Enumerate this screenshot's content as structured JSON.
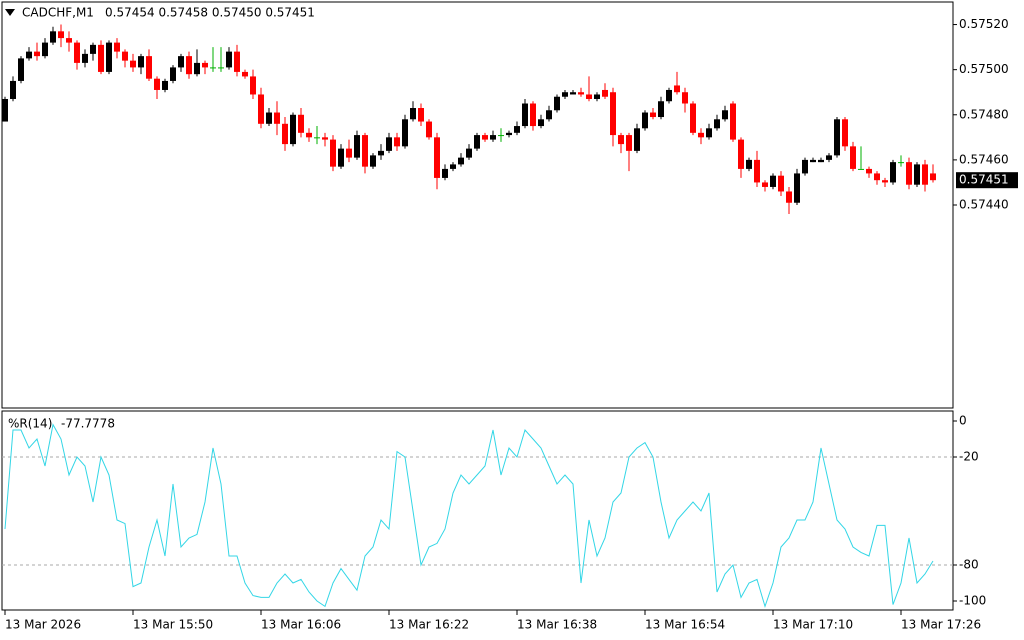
{
  "chart_data": [
    {
      "type": "candlestick",
      "title": "CADCHF,M1",
      "info": "0.57454 0.57458 0.57450 0.57451",
      "up_color": "#000000",
      "down_color": "#ff0000",
      "doji_color": "#00b000",
      "current_price": 0.57451,
      "ylim": [
        0.5735,
        0.5753
      ],
      "yticks": [
        {
          "value": 0.5744,
          "label": "0.57440"
        },
        {
          "value": 0.5746,
          "label": "0.57460"
        },
        {
          "value": 0.5748,
          "label": "0.57480"
        },
        {
          "value": 0.575,
          "label": "0.57500"
        },
        {
          "value": 0.5752,
          "label": "0.57520"
        }
      ],
      "categories": [
        "13 Mar 2026",
        null,
        null,
        null,
        null,
        null,
        null,
        null,
        null,
        null,
        null,
        null,
        null,
        null,
        null,
        null,
        "13 Mar 15:50",
        null,
        null,
        null,
        null,
        null,
        null,
        null,
        null,
        null,
        null,
        null,
        null,
        null,
        null,
        null,
        "13 Mar 16:06",
        null,
        null,
        null,
        null,
        null,
        null,
        null,
        null,
        null,
        null,
        null,
        null,
        null,
        null,
        null,
        "13 Mar 16:22",
        null,
        null,
        null,
        null,
        null,
        null,
        null,
        null,
        null,
        null,
        null,
        null,
        null,
        null,
        null,
        "13 Mar 16:38",
        null,
        null,
        null,
        null,
        null,
        null,
        null,
        null,
        null,
        null,
        null,
        null,
        null,
        null,
        null,
        "13 Mar 16:54",
        null,
        null,
        null,
        null,
        null,
        null,
        null,
        null,
        null,
        null,
        null,
        null,
        null,
        null,
        null,
        "13 Mar 17:10",
        null,
        null,
        null,
        null,
        null,
        null,
        null,
        null,
        null,
        null,
        null,
        null,
        null,
        null,
        null,
        "13 Mar 17:26",
        null,
        null,
        null,
        null
      ],
      "open": [
        0.57477,
        0.57487,
        0.57495,
        0.57505,
        0.57508,
        0.57506,
        0.57512,
        0.57517,
        0.57514,
        0.57512,
        0.57503,
        0.57507,
        0.57511,
        0.57499,
        0.57512,
        0.57508,
        0.57504,
        0.57501,
        0.57506,
        0.57496,
        0.57491,
        0.57495,
        0.57501,
        0.57506,
        0.57498,
        0.57503,
        0.57501,
        0.57501,
        0.57501,
        0.57508,
        0.57499,
        0.57497,
        0.57489,
        0.57476,
        0.57481,
        0.57476,
        0.57467,
        0.5748,
        0.57472,
        0.5747,
        0.5747,
        0.57469,
        0.57457,
        0.57465,
        0.57461,
        0.57471,
        0.57457,
        0.57462,
        0.57464,
        0.5747,
        0.57466,
        0.57478,
        0.57483,
        0.57477,
        0.5747,
        0.57452,
        0.57456,
        0.57458,
        0.57461,
        0.57465,
        0.57471,
        0.57469,
        0.57471,
        0.57471,
        0.57472,
        0.57475,
        0.57485,
        0.57475,
        0.57478,
        0.57482,
        0.57488,
        0.57489,
        0.5749,
        0.57489,
        0.57487,
        0.57491,
        0.5749,
        0.57471,
        0.57471,
        0.57464,
        0.57474,
        0.57481,
        0.57479,
        0.57486,
        0.57493,
        0.5749,
        0.57485,
        0.57472,
        0.5747,
        0.57474,
        0.57478,
        0.57485,
        0.57469,
        0.57456,
        0.5746,
        0.5745,
        0.57448,
        0.57453,
        0.57446,
        0.57441,
        0.57454,
        0.57459,
        0.57459,
        0.5746,
        0.57462,
        0.57478,
        0.57466,
        0.57456,
        0.57456,
        0.57454,
        0.57451,
        0.5745,
        0.57459,
        0.57459,
        0.57449,
        0.57458,
        0.57454
      ],
      "high": [
        0.57488,
        0.57497,
        0.57506,
        0.5751,
        0.57512,
        0.57514,
        0.57519,
        0.5752,
        0.57517,
        0.57513,
        0.57509,
        0.57512,
        0.57513,
        0.57513,
        0.57514,
        0.57509,
        0.57507,
        0.57507,
        0.57509,
        0.57497,
        0.57496,
        0.57502,
        0.57507,
        0.57508,
        0.57509,
        0.57504,
        0.5751,
        0.5751,
        0.5751,
        0.57511,
        0.575,
        0.575,
        0.57492,
        0.57483,
        0.57486,
        0.57479,
        0.57481,
        0.57483,
        0.57474,
        0.57475,
        0.57472,
        0.57471,
        0.57467,
        0.57469,
        0.57473,
        0.57472,
        0.57463,
        0.57467,
        0.57472,
        0.57472,
        0.5748,
        0.57486,
        0.57485,
        0.57478,
        0.57472,
        0.57458,
        0.57459,
        0.57463,
        0.57467,
        0.57472,
        0.57472,
        0.57473,
        0.57474,
        0.57473,
        0.57477,
        0.57487,
        0.57486,
        0.5748,
        0.57484,
        0.57489,
        0.57491,
        0.57491,
        0.57492,
        0.57497,
        0.5749,
        0.57494,
        0.57492,
        0.57472,
        0.57472,
        0.57476,
        0.57482,
        0.57483,
        0.57488,
        0.57492,
        0.57499,
        0.57492,
        0.57486,
        0.57474,
        0.57476,
        0.5748,
        0.57484,
        0.57486,
        0.5747,
        0.57461,
        0.57464,
        0.57451,
        0.57454,
        0.57455,
        0.57448,
        0.57456,
        0.57461,
        0.57461,
        0.57461,
        0.57463,
        0.57479,
        0.57479,
        0.57468,
        0.57466,
        0.57457,
        0.57455,
        0.57452,
        0.5746,
        0.57462,
        0.57461,
        0.57459,
        0.5746,
        0.57458
      ],
      "low": [
        0.57477,
        0.57486,
        0.57494,
        0.57504,
        0.57504,
        0.57505,
        0.57511,
        0.5751,
        0.57508,
        0.575,
        0.57501,
        0.57504,
        0.57498,
        0.57498,
        0.57505,
        0.57501,
        0.57499,
        0.57498,
        0.57495,
        0.57487,
        0.5749,
        0.57494,
        0.57499,
        0.57496,
        0.57497,
        0.57498,
        0.57499,
        0.57499,
        0.575,
        0.57497,
        0.57496,
        0.57487,
        0.57474,
        0.57475,
        0.57471,
        0.57464,
        0.57466,
        0.5747,
        0.57468,
        0.57467,
        0.57466,
        0.57455,
        0.57456,
        0.57459,
        0.5746,
        0.57454,
        0.57456,
        0.5746,
        0.57463,
        0.57464,
        0.57465,
        0.57477,
        0.57475,
        0.57469,
        0.57447,
        0.57451,
        0.57455,
        0.57457,
        0.5746,
        0.57464,
        0.57468,
        0.57468,
        0.57468,
        0.5747,
        0.57471,
        0.57474,
        0.57473,
        0.57474,
        0.57477,
        0.57481,
        0.57487,
        0.57489,
        0.57488,
        0.57486,
        0.57486,
        0.57487,
        0.57466,
        0.57463,
        0.57455,
        0.57463,
        0.57473,
        0.57478,
        0.57478,
        0.57485,
        0.57489,
        0.57481,
        0.57471,
        0.57467,
        0.57469,
        0.57473,
        0.57477,
        0.57468,
        0.57452,
        0.57455,
        0.57448,
        0.57446,
        0.57447,
        0.57444,
        0.57436,
        0.5744,
        0.57453,
        0.57459,
        0.57459,
        0.57459,
        0.57461,
        0.57464,
        0.57455,
        0.57456,
        0.57452,
        0.57449,
        0.57448,
        0.57449,
        0.57457,
        0.57447,
        0.57448,
        0.57446,
        0.5745
      ],
      "close": [
        0.57487,
        0.57495,
        0.57505,
        0.57508,
        0.57506,
        0.57512,
        0.57517,
        0.57514,
        0.57512,
        0.57503,
        0.57507,
        0.57511,
        0.57499,
        0.57512,
        0.57508,
        0.57504,
        0.57501,
        0.57506,
        0.57496,
        0.57491,
        0.57495,
        0.57501,
        0.57506,
        0.57498,
        0.57503,
        0.57501,
        0.57501,
        0.57501,
        0.57508,
        0.57499,
        0.57497,
        0.57489,
        0.57476,
        0.57481,
        0.57476,
        0.57467,
        0.5748,
        0.57472,
        0.5747,
        0.5747,
        0.57469,
        0.57457,
        0.57465,
        0.57461,
        0.57471,
        0.57457,
        0.57462,
        0.57464,
        0.5747,
        0.57466,
        0.57478,
        0.57483,
        0.57477,
        0.5747,
        0.57452,
        0.57456,
        0.57458,
        0.57461,
        0.57465,
        0.57471,
        0.57469,
        0.57471,
        0.57471,
        0.57472,
        0.57475,
        0.57485,
        0.57475,
        0.57478,
        0.57482,
        0.57488,
        0.5749,
        0.5749,
        0.57489,
        0.57487,
        0.57489,
        0.57488,
        0.57471,
        0.57467,
        0.57464,
        0.57474,
        0.57481,
        0.57479,
        0.57486,
        0.57491,
        0.5749,
        0.57485,
        0.57472,
        0.5747,
        0.57474,
        0.57478,
        0.57482,
        0.57469,
        0.57456,
        0.5746,
        0.5745,
        0.57448,
        0.57453,
        0.57446,
        0.57441,
        0.57454,
        0.5746,
        0.5746,
        0.5746,
        0.57462,
        0.57478,
        0.57466,
        0.57456,
        0.57456,
        0.57454,
        0.57451,
        0.5745,
        0.57459,
        0.57459,
        0.57449,
        0.57458,
        0.57449,
        0.57451
      ]
    },
    {
      "type": "line",
      "title": "%R(14)",
      "color": "#33d6e6",
      "ylim": [
        -105,
        5
      ],
      "yticks": [
        0,
        -20,
        -80,
        -100
      ],
      "levels": [
        -20,
        -80
      ],
      "values": [
        -60,
        -5,
        -5,
        -15,
        -10,
        -25,
        -2,
        -10,
        -30,
        -20,
        -25,
        -45,
        -20,
        -30,
        -55,
        -57,
        -92,
        -90,
        -70,
        -55,
        -75,
        -35,
        -70,
        -65,
        -63,
        -45,
        -15,
        -35,
        -75,
        -75,
        -90,
        -97,
        -98,
        -98,
        -90,
        -85,
        -90,
        -88,
        -95,
        -100,
        -103,
        -90,
        -82,
        -88,
        -94,
        -75,
        -70,
        -55,
        -60,
        -17,
        -20,
        -50,
        -80,
        -70,
        -68,
        -60,
        -40,
        -30,
        -35,
        -30,
        -25,
        -5,
        -30,
        -15,
        -20,
        -5,
        -10,
        -15,
        -25,
        -35,
        -30,
        -35,
        -90,
        -55,
        -75,
        -65,
        -45,
        -40,
        -20,
        -15,
        -12,
        -20,
        -45,
        -65,
        -55,
        -50,
        -45,
        -50,
        -40,
        -95,
        -85,
        -80,
        -98,
        -90,
        -88,
        -103,
        -90,
        -70,
        -65,
        -55,
        -55,
        -45,
        -15,
        -35,
        -55,
        -60,
        -70,
        -73,
        -75,
        -58,
        -58,
        -102,
        -90,
        -65,
        -90,
        -85,
        -77.7778
      ]
    }
  ]
}
